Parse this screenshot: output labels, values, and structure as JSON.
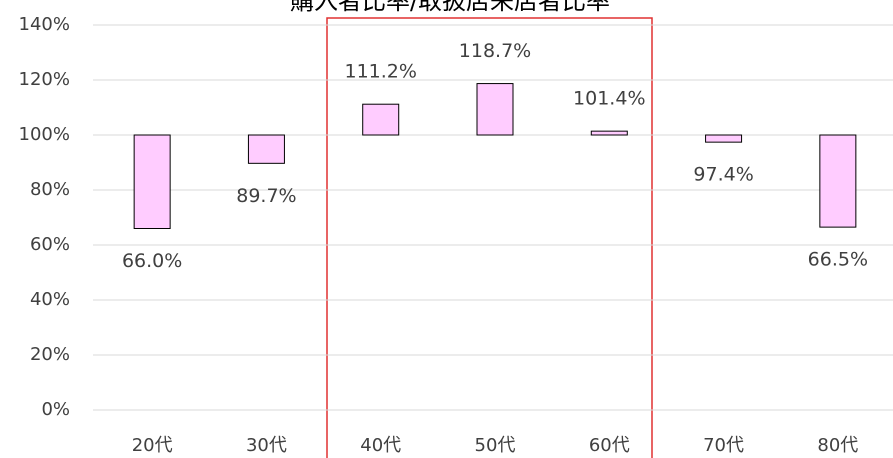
{
  "chart_data": {
    "type": "bar",
    "title": "購入者比率/取扱店来店者比率",
    "categories": [
      "20代",
      "30代",
      "40代",
      "50代",
      "60代",
      "70代",
      "80代"
    ],
    "values": [
      66.0,
      89.7,
      111.2,
      118.7,
      101.4,
      97.4,
      66.5
    ],
    "value_labels": [
      "66.0%",
      "89.7%",
      "111.2%",
      "118.7%",
      "101.4%",
      "97.4%",
      "66.5%"
    ],
    "base": 100,
    "color": "#ffccff",
    "ylim": [
      0,
      140
    ],
    "yticks": [
      {
        "value": 0,
        "label": "0%"
      },
      {
        "value": 20,
        "label": "20%"
      },
      {
        "value": 40,
        "label": "40%"
      },
      {
        "value": 60,
        "label": "60%"
      },
      {
        "value": 80,
        "label": "80%"
      },
      {
        "value": 100,
        "label": "100%"
      },
      {
        "value": 120,
        "label": "120%"
      },
      {
        "value": 140,
        "label": "140%"
      }
    ],
    "grid": true
  }
}
